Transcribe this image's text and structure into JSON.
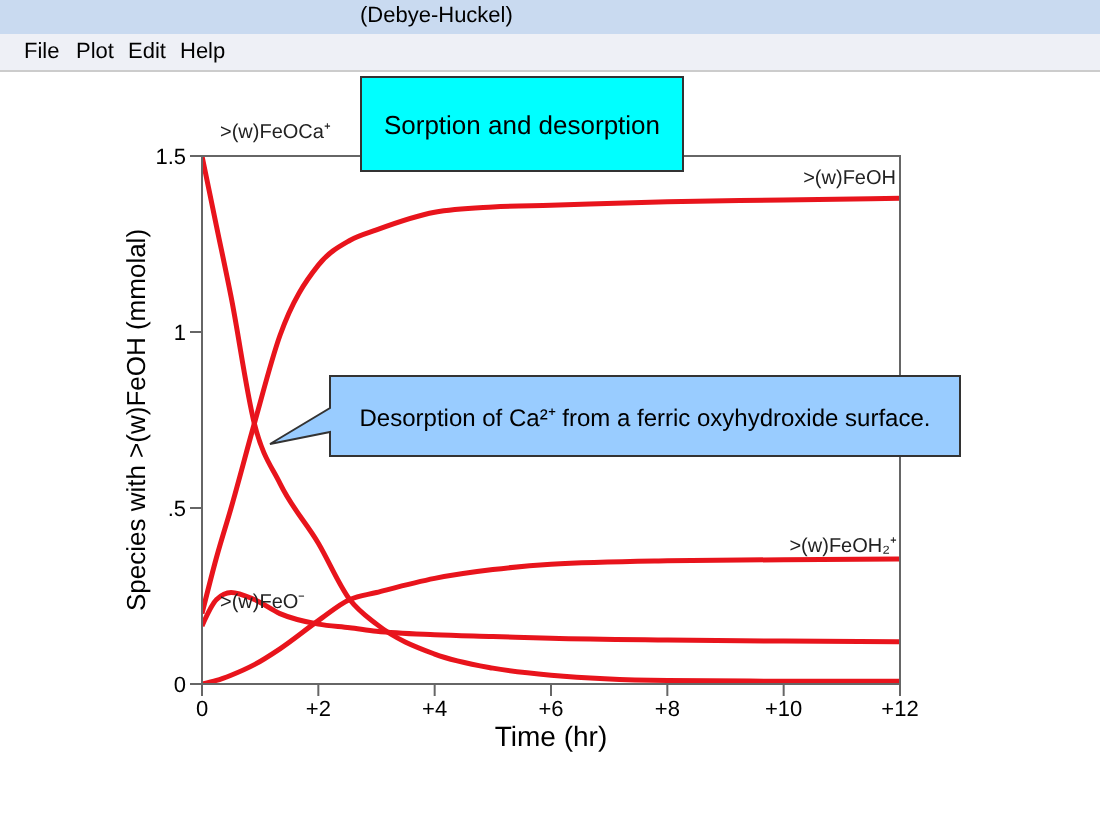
{
  "chart_data": {
    "type": "line",
    "title": "Sorption and desorption",
    "xlabel": "Time (hr)",
    "ylabel": "Species with >(w)FeOH (mmolal)",
    "x": [
      0,
      0.25,
      0.5,
      0.9,
      1.34,
      2,
      2.54,
      3,
      4,
      5,
      6,
      8,
      10,
      12
    ],
    "series": [
      {
        "name": ">(w)FeOCa⁺",
        "color": "#e8141c",
        "values": [
          1.5,
          1.3,
          1.1,
          0.74,
          0.57,
          0.4,
          0.24,
          0.17,
          0.085,
          0.045,
          0.025,
          0.01,
          0.008,
          0.008
        ]
      },
      {
        "name": ">(w)FeOH",
        "color": "#e8141c",
        "values": [
          0.2,
          0.36,
          0.5,
          0.74,
          0.99,
          1.19,
          1.26,
          1.29,
          1.34,
          1.355,
          1.36,
          1.37,
          1.375,
          1.38
        ]
      },
      {
        "name": ">(w)FeOH₂⁺",
        "color": "#e8141c",
        "values": [
          0,
          0.01,
          0.025,
          0.055,
          0.1,
          0.18,
          0.24,
          0.26,
          0.3,
          0.325,
          0.34,
          0.35,
          0.353,
          0.355
        ]
      },
      {
        "name": ">(w)FeO⁻",
        "color": "#e8141c",
        "values": [
          0.165,
          0.24,
          0.26,
          0.24,
          0.2,
          0.17,
          0.16,
          0.15,
          0.14,
          0.135,
          0.13,
          0.125,
          0.122,
          0.12
        ]
      }
    ],
    "xlim": [
      0,
      12
    ],
    "xticks": [
      0,
      {
        "value": 2,
        "label": "+2"
      },
      {
        "value": 4,
        "label": "+4"
      },
      {
        "value": 6,
        "label": "+6"
      },
      {
        "value": 8,
        "label": "+8"
      },
      {
        "value": 10,
        "label": "+10"
      },
      {
        "value": 12,
        "label": "+12"
      }
    ],
    "ylim": [
      0,
      1.5
    ],
    "yticks": [
      0,
      {
        "value": 0.5,
        "label": ".5"
      },
      1,
      1.5
    ],
    "grid": false,
    "legend": false,
    "marker": "none",
    "line_style": "solid",
    "annotations": [
      "Desorption of Ca²⁺ from a ferric oxyhydroxide surface.",
      "(Debye-Huckel)",
      "File",
      "Plot",
      "Edit",
      "Help"
    ]
  }
}
